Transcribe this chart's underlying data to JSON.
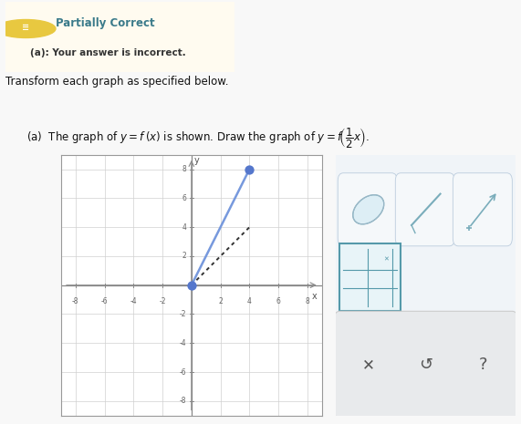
{
  "graph_xlim": [
    -9,
    9
  ],
  "graph_ylim": [
    -9,
    9
  ],
  "grid_ticks": [
    -8,
    -6,
    -4,
    -2,
    0,
    2,
    4,
    6,
    8
  ],
  "blue_line": {
    "x": [
      0,
      4
    ],
    "y": [
      0,
      8
    ],
    "color": "#7799dd",
    "linewidth": 1.8
  },
  "black_line": {
    "x": [
      0,
      4
    ],
    "y": [
      0,
      4
    ],
    "color": "#333333",
    "linewidth": 1.4
  },
  "dot_color": "#5577cc",
  "dot_size": 55,
  "dot_points": [
    [
      0,
      0
    ],
    [
      4,
      8
    ]
  ],
  "grid_color": "#d0d0d0",
  "axis_color": "#888888",
  "bg_color": "#ffffff",
  "page_bg": "#f8f8f8",
  "badge_bg": "#fffbf0",
  "badge_border": "#e8c840",
  "badge_title": "Partially Correct",
  "badge_title_color": "#3a7a8a",
  "badge_sub": "(a): Your answer is incorrect.",
  "badge_sub_color": "#333333",
  "icon_bg": "#e8c840",
  "toolbar_bg": "#f0f4f8",
  "toolbar_border": "#aabbcc",
  "toolbar_grid_border": "#5599aa",
  "toolbar_grid_bg": "#e8f4f8",
  "toolbar_bottom_bg": "#e8eaec",
  "toolbar_x_color": "#555555",
  "toolbar_undo_color": "#555555",
  "toolbar_q_color": "#555555"
}
